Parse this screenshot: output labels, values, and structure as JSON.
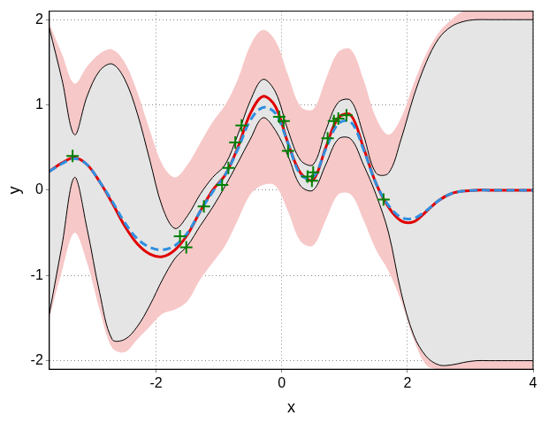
{
  "chart_data": {
    "type": "line",
    "x_label": "x",
    "y_label": "y",
    "xlim": [
      -3.7,
      4
    ],
    "ylim": [
      -2.1,
      2.1
    ],
    "xticks": [
      -2,
      0,
      2,
      4
    ],
    "yticks": [
      -2,
      -1,
      0,
      1,
      2
    ],
    "grid": true,
    "x": [
      -3.7,
      -3.5,
      -3.3,
      -3.1,
      -2.9,
      -2.7,
      -2.5,
      -2.3,
      -2.1,
      -1.9,
      -1.7,
      -1.5,
      -1.3,
      -1.1,
      -0.9,
      -0.7,
      -0.5,
      -0.3,
      -0.1,
      0.1,
      0.3,
      0.5,
      0.7,
      0.9,
      1.1,
      1.3,
      1.5,
      1.7,
      1.9,
      2.1,
      2.3,
      2.5,
      2.7,
      2.9,
      3.1,
      3.3,
      3.5,
      3.7,
      4.0
    ],
    "series": [
      {
        "type": "band",
        "color": "#f7c8c8",
        "line_style": "none",
        "upper": [
          1.95,
          1.6,
          1.25,
          1.45,
          1.6,
          1.65,
          1.5,
          1.15,
          0.7,
          0.3,
          0.15,
          0.3,
          0.55,
          0.8,
          1.0,
          1.3,
          1.7,
          1.88,
          1.75,
          1.35,
          0.98,
          0.95,
          1.3,
          1.62,
          1.65,
          1.3,
          0.85,
          0.65,
          0.85,
          1.25,
          1.6,
          1.85,
          2.0,
          2.1,
          2.1,
          2.1,
          2.1,
          2.1,
          2.1
        ],
        "lower": [
          -1.5,
          -0.95,
          -0.5,
          -0.85,
          -1.4,
          -1.85,
          -1.9,
          -1.75,
          -1.6,
          -1.45,
          -1.4,
          -1.3,
          -1.05,
          -0.85,
          -0.65,
          -0.35,
          -0.05,
          0.06,
          0.05,
          -0.25,
          -0.6,
          -0.65,
          -0.35,
          -0.05,
          -0.05,
          -0.35,
          -0.7,
          -0.95,
          -1.3,
          -1.75,
          -2.05,
          -2.1,
          -2.1,
          -2.1,
          -2.1,
          -2.1,
          -2.1,
          -2.1,
          -2.1
        ]
      },
      {
        "type": "band",
        "color": "#e5e5e5",
        "line_style": "solid",
        "upper": [
          1.9,
          1.3,
          0.65,
          1.1,
          1.4,
          1.48,
          1.3,
          0.9,
          0.35,
          -0.2,
          -0.45,
          -0.3,
          -0.05,
          0.15,
          0.3,
          0.65,
          1.05,
          1.3,
          1.15,
          0.7,
          0.35,
          0.3,
          0.7,
          1.03,
          1.05,
          0.65,
          0.2,
          0.2,
          0.6,
          1.1,
          1.5,
          1.78,
          1.92,
          1.98,
          2.0,
          2.0,
          2.0,
          2.0,
          2.0
        ],
        "lower": [
          -1.45,
          -0.65,
          0.15,
          -0.45,
          -1.2,
          -1.75,
          -1.75,
          -1.6,
          -1.35,
          -1.05,
          -0.8,
          -0.65,
          -0.42,
          -0.2,
          0.05,
          0.32,
          0.6,
          0.85,
          0.7,
          0.4,
          0.05,
          0.0,
          0.3,
          0.6,
          0.6,
          0.3,
          -0.05,
          -0.5,
          -1.2,
          -1.7,
          -1.95,
          -2.05,
          -2.05,
          -2.02,
          -2.0,
          -2.0,
          -2.0,
          -2.0,
          -2.0
        ]
      },
      {
        "type": "line",
        "color": "#e00000",
        "line_style": "solid",
        "values": [
          0.22,
          0.32,
          0.38,
          0.3,
          0.1,
          -0.15,
          -0.42,
          -0.63,
          -0.75,
          -0.78,
          -0.7,
          -0.52,
          -0.25,
          0.0,
          0.18,
          0.5,
          0.9,
          1.1,
          0.98,
          0.55,
          0.2,
          0.12,
          0.5,
          0.85,
          0.88,
          0.5,
          0.08,
          -0.2,
          -0.36,
          -0.37,
          -0.25,
          -0.12,
          -0.04,
          -0.01,
          0,
          0,
          0,
          0,
          0
        ]
      },
      {
        "type": "line",
        "color": "#2f8fe0",
        "line_style": "dashed",
        "values": [
          0.22,
          0.31,
          0.37,
          0.3,
          0.1,
          -0.13,
          -0.38,
          -0.57,
          -0.67,
          -0.7,
          -0.65,
          -0.5,
          -0.25,
          -0.02,
          0.18,
          0.48,
          0.82,
          0.97,
          0.9,
          0.55,
          0.18,
          0.15,
          0.48,
          0.78,
          0.8,
          0.48,
          0.08,
          -0.18,
          -0.32,
          -0.33,
          -0.24,
          -0.12,
          -0.04,
          -0.01,
          0,
          0,
          0,
          0,
          0
        ]
      },
      {
        "type": "scatter",
        "color": "#008000",
        "marker": "plus",
        "x": [
          -3.33,
          -1.62,
          -1.52,
          -1.24,
          -0.95,
          -0.85,
          -0.74,
          -0.64,
          -0.04,
          0.03,
          0.1,
          0.41,
          0.48,
          0.5,
          0.73,
          0.83,
          0.9,
          1.03,
          1.62
        ],
        "values": [
          0.4,
          -0.54,
          -0.67,
          -0.19,
          0.06,
          0.26,
          0.56,
          0.76,
          0.86,
          0.81,
          0.46,
          0.16,
          0.11,
          0.21,
          0.61,
          0.81,
          0.84,
          0.88,
          -0.11
        ]
      }
    ]
  }
}
